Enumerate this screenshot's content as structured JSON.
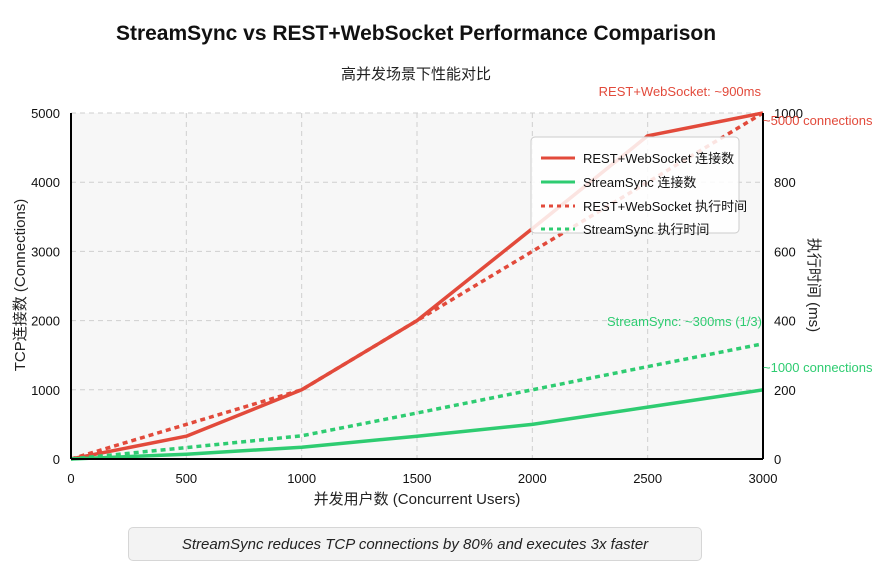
{
  "title": "StreamSync vs REST+WebSocket Performance Comparison",
  "subtitle": "高并发场景下性能对比",
  "caption": "StreamSync reduces TCP connections by 80% and executes 3x faster",
  "chart_data": {
    "type": "line",
    "x": [
      0,
      500,
      1000,
      1500,
      2000,
      2500,
      3000
    ],
    "xlabel": "并发用户数 (Concurrent Users)",
    "ylabel_left": "TCP连接数 (Connections)",
    "ylabel_right": "执行时间 (ms)",
    "xlim": [
      0,
      3000
    ],
    "ylim_left": [
      0,
      5000
    ],
    "ylim_right": [
      0,
      1000
    ],
    "x_ticks": [
      0,
      500,
      1000,
      1500,
      2000,
      2500,
      3000
    ],
    "y_ticks_left": [
      0,
      1000,
      2000,
      3000,
      4000,
      5000
    ],
    "y_ticks_right": [
      0,
      200,
      400,
      600,
      800,
      1000
    ],
    "grid": true,
    "legend_position": "upper-right",
    "series": [
      {
        "name": "REST+WebSocket 连接数",
        "axis": "left",
        "style": "solid",
        "color": "#e24a3b",
        "values": [
          0,
          330,
          1000,
          2000,
          3330,
          4670,
          5000
        ]
      },
      {
        "name": "StreamSync 连接数",
        "axis": "left",
        "style": "solid",
        "color": "#2ecc71",
        "values": [
          0,
          70,
          170,
          330,
          500,
          750,
          1000
        ]
      },
      {
        "name": "REST+WebSocket 执行时间",
        "axis": "right",
        "style": "dotted",
        "color": "#e24a3b",
        "values": [
          0,
          100,
          200,
          400,
          600,
          800,
          1000
        ]
      },
      {
        "name": "StreamSync 执行时间",
        "axis": "right",
        "style": "dotted",
        "color": "#2ecc71",
        "values": [
          0,
          33,
          67,
          133,
          200,
          267,
          333
        ]
      }
    ],
    "annotations": {
      "rest_time": "REST+WebSocket: ~900ms",
      "rest_conn": "~5000 connections",
      "ss_time": "StreamSync: ~300ms (1/3)",
      "ss_conn": "~1000 connections"
    }
  }
}
